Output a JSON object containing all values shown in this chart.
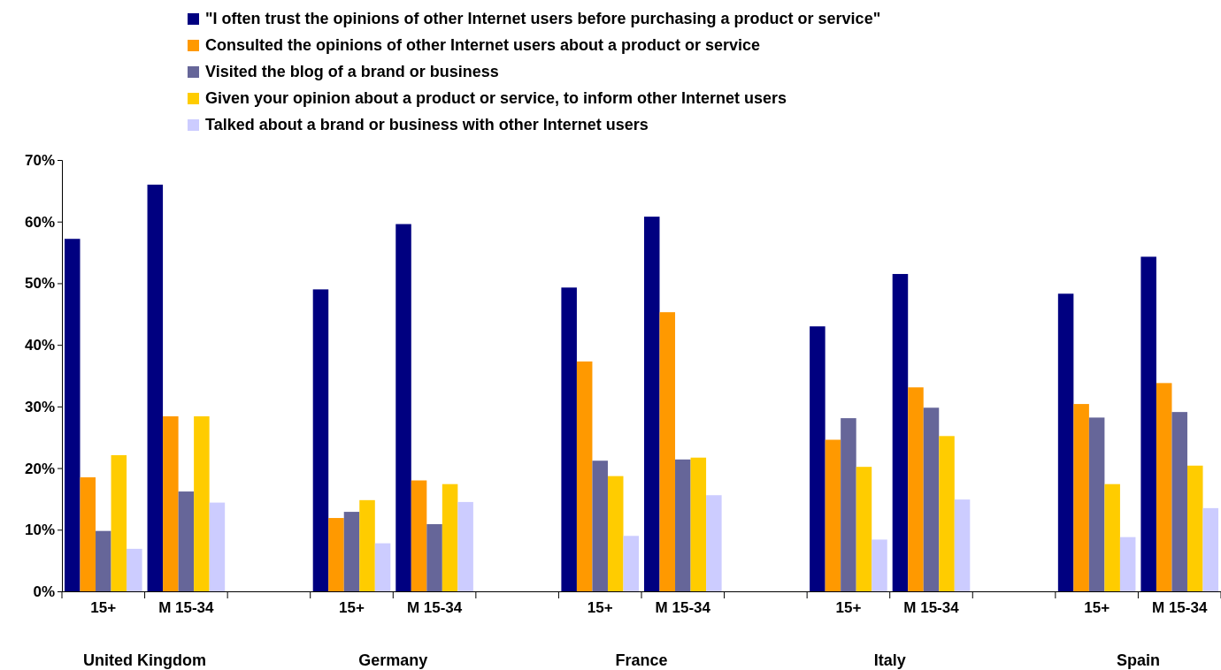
{
  "chart_data": {
    "type": "bar",
    "categories": [
      "15+",
      "M 15-34",
      null,
      "15+",
      "M 15-34",
      null,
      "15+",
      "M 15-34",
      null,
      "15+",
      "M 15-34",
      null,
      "15+",
      "M 15-34"
    ],
    "series": [
      {
        "name": "\"I often trust the opinions of other Internet users before purchasing a product or service\"",
        "color": "#000080",
        "values": [
          57.2,
          66,
          null,
          49,
          59.6,
          null,
          49.3,
          60.8,
          null,
          43,
          51.5,
          null,
          48.3,
          54.3
        ]
      },
      {
        "name": "Consulted the opinions of other Internet users about a product or service",
        "color": "#ff9900",
        "values": [
          18.5,
          28.4,
          null,
          11.9,
          18,
          null,
          37.3,
          45.3,
          null,
          24.6,
          33.1,
          null,
          30.4,
          33.8
        ]
      },
      {
        "name": "Visited the blog of a brand or business",
        "color": "#666699",
        "values": [
          9.8,
          16.2,
          null,
          12.9,
          10.9,
          null,
          21.2,
          21.4,
          null,
          28.1,
          29.8,
          null,
          28.2,
          29.1
        ]
      },
      {
        "name": "Given your opinion about a product or service, to inform other Internet users",
        "color": "#ffcc00",
        "values": [
          22.1,
          28.4,
          null,
          14.8,
          17.4,
          null,
          18.7,
          21.7,
          null,
          20.2,
          25.2,
          null,
          17.4,
          20.4
        ]
      },
      {
        "name": "Talked about a brand or business with other Internet users",
        "color": "#ccccff",
        "values": [
          6.9,
          14.4,
          null,
          7.8,
          14.5,
          null,
          9,
          15.6,
          null,
          8.4,
          14.9,
          null,
          8.8,
          13.5
        ]
      }
    ],
    "ylim": [
      0,
      70
    ],
    "yticks": [
      {
        "value": 0,
        "label": "0%"
      },
      {
        "value": 10,
        "label": "10%"
      },
      {
        "value": 20,
        "label": "20%"
      },
      {
        "value": 30,
        "label": "30%"
      },
      {
        "value": 40,
        "label": "40%"
      },
      {
        "value": 50,
        "label": "50%"
      },
      {
        "value": 60,
        "label": "60%"
      },
      {
        "value": 70,
        "label": "70%"
      }
    ],
    "annotations": [
      "United Kingdom",
      "Germany",
      "France",
      "Italy",
      "Spain"
    ],
    "grid": false,
    "legend": "top"
  }
}
